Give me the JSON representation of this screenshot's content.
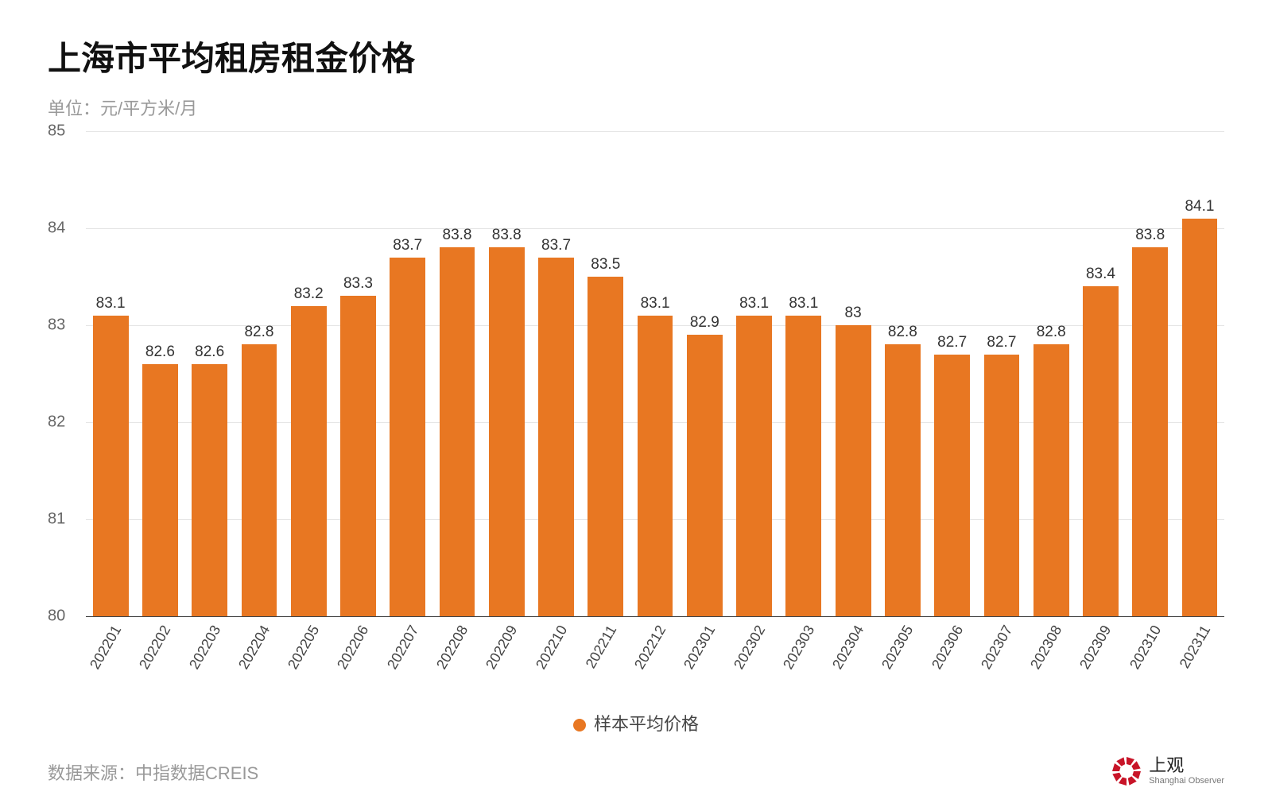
{
  "title": "上海市平均租房租金价格",
  "subtitle": "单位：元/平方米/月",
  "chart": {
    "type": "bar",
    "categories": [
      "202201",
      "202202",
      "202203",
      "202204",
      "202205",
      "202206",
      "202207",
      "202208",
      "202209",
      "202210",
      "202211",
      "202212",
      "202301",
      "202302",
      "202303",
      "202304",
      "202305",
      "202306",
      "202307",
      "202308",
      "202309",
      "202310",
      "202311"
    ],
    "values": [
      83.1,
      82.6,
      82.6,
      82.8,
      83.2,
      83.3,
      83.7,
      83.8,
      83.8,
      83.7,
      83.5,
      83.1,
      82.9,
      83.1,
      83.1,
      83,
      82.8,
      82.7,
      82.7,
      82.8,
      83.4,
      83.8,
      84.1
    ],
    "value_labels": [
      "83.1",
      "82.6",
      "82.6",
      "82.8",
      "83.2",
      "83.3",
      "83.7",
      "83.8",
      "83.8",
      "83.7",
      "83.5",
      "83.1",
      "82.9",
      "83.1",
      "83.1",
      "83",
      "82.8",
      "82.7",
      "82.7",
      "82.8",
      "83.4",
      "83.8",
      "84.1"
    ],
    "bar_color": "#e87722",
    "ylim": [
      80,
      85
    ],
    "yticks": [
      80,
      81,
      82,
      83,
      84,
      85
    ],
    "ytick_labels": [
      "80",
      "81",
      "82",
      "83",
      "84",
      "85"
    ],
    "grid_color": "#e5e5e5",
    "axis_color": "#444444",
    "background_color": "#ffffff",
    "value_label_fontsize": 19,
    "axis_label_fontsize": 20,
    "xlabel_fontsize": 18,
    "xlabel_rotation_deg": -60,
    "bar_width_ratio": 0.72
  },
  "legend": {
    "label": "样本平均价格",
    "color": "#e87722"
  },
  "source": "数据来源：中指数据CREIS",
  "brand": {
    "cn": "上观",
    "en": "Shanghai Observer",
    "logo_color": "#c81428"
  }
}
